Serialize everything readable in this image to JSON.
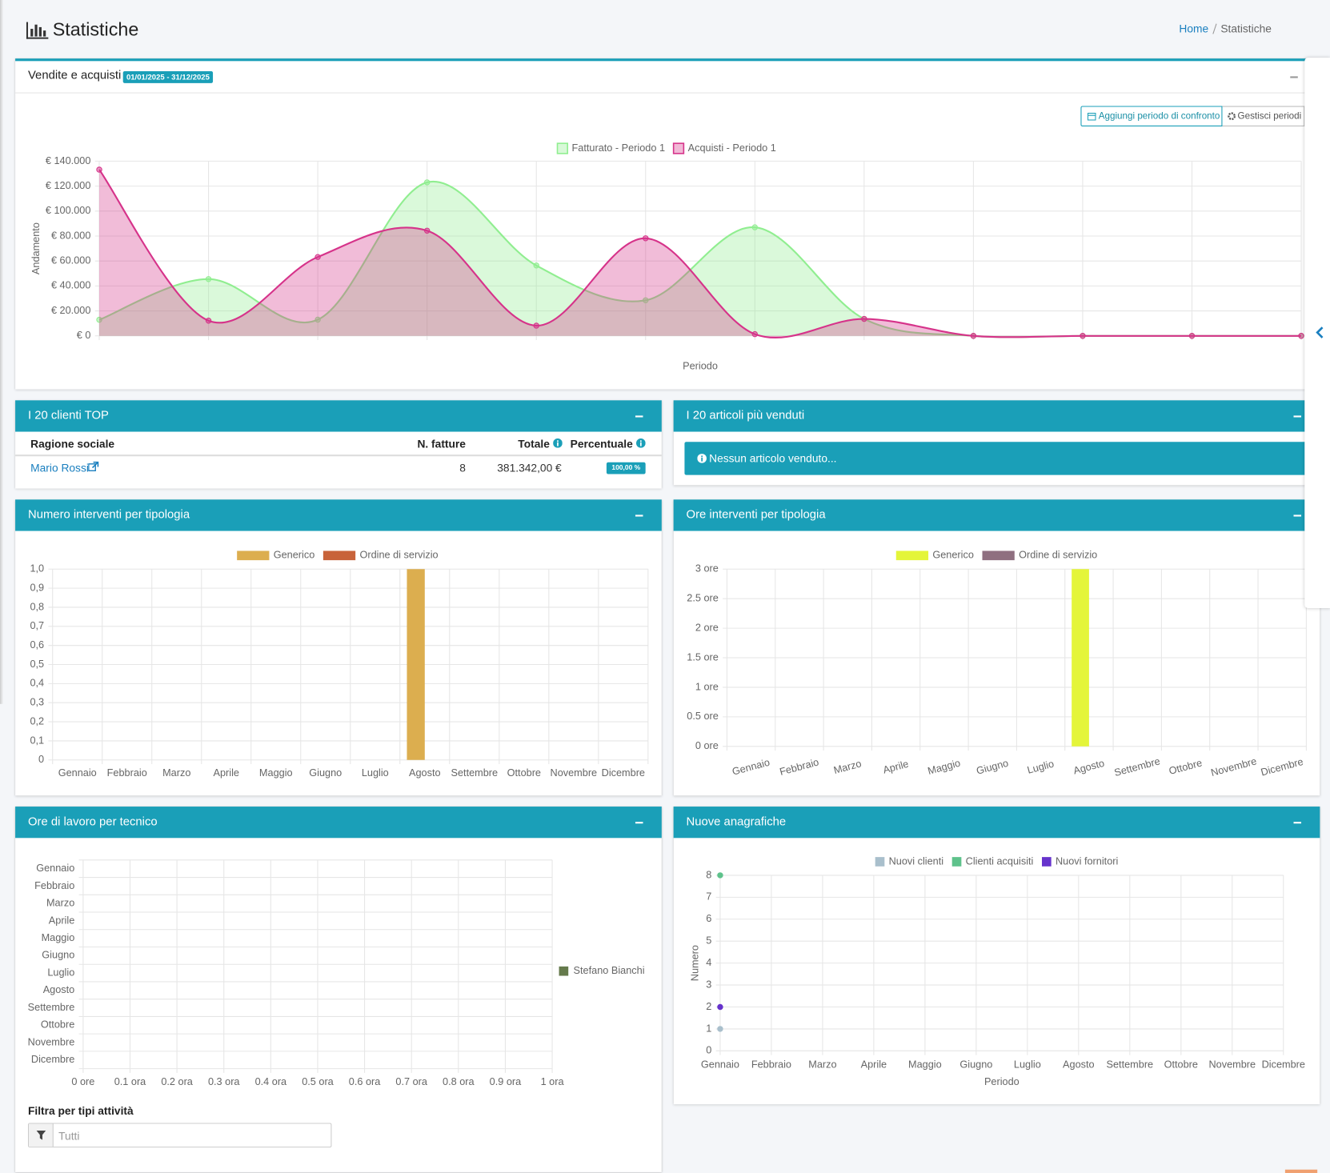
{
  "header": {
    "title": "Statistiche",
    "breadcrumb": [
      "Home",
      "Statistiche"
    ]
  },
  "sales_panel": {
    "period": "01/01/2025 - 31/12/2025",
    "buttons": [
      "Aggiungi periodo di confronto",
      "Gestisci periodi"
    ]
  },
  "top_clients": {
    "title": "I 20 clienti TOP",
    "columns": [
      "Ragione sociale",
      "N. fatture",
      "Totale",
      "Percentuale"
    ],
    "rows": [
      [
        "Mario Rossi",
        8,
        "381.342,00 €",
        "100,00 %"
      ]
    ]
  },
  "top_articles": {
    "title": "I 20 articoli più venduti",
    "message": "Nessun articolo venduto..."
  },
  "filter": {
    "label": "Filtra per tipi attività",
    "placeholder": "Tutti"
  },
  "chart_data": [
    {
      "type": "line",
      "title": "Vendite e acquisti",
      "area": true,
      "smooth": true,
      "x_label": "Periodo",
      "y_label": "Andamento",
      "legend": "top",
      "grid": true,
      "ylim": [
        0,
        140000
      ],
      "yticks": [
        {
          "value": 0,
          "label": "€ 0"
        },
        {
          "value": 20000,
          "label": "€ 20.000"
        },
        {
          "value": 40000,
          "label": "€ 40.000"
        },
        {
          "value": 60000,
          "label": "€ 60.000"
        },
        {
          "value": 80000,
          "label": "€ 80.000"
        },
        {
          "value": 100000,
          "label": "€ 100.000"
        },
        {
          "value": 120000,
          "label": "€ 120.000"
        },
        {
          "value": 140000,
          "label": "€ 140.000"
        }
      ],
      "series": [
        {
          "name": "Fatturato - Periodo 1",
          "color": "#90ee90",
          "values": [
            12900,
            45500,
            13000,
            123000,
            56400,
            28500,
            87000,
            13600,
            0,
            0,
            0,
            0
          ]
        },
        {
          "name": "Acquisti - Periodo 1",
          "color": "#d6338a",
          "values": [
            133200,
            12200,
            63200,
            84300,
            8200,
            78200,
            1400,
            13600,
            0,
            0,
            0,
            0
          ]
        }
      ]
    },
    {
      "type": "bar",
      "title": "Numero interventi per tipologia",
      "legend": "top",
      "grid": true,
      "categories": [
        "Gennaio",
        "Febbraio",
        "Marzo",
        "Aprile",
        "Maggio",
        "Giugno",
        "Luglio",
        "Agosto",
        "Settembre",
        "Ottobre",
        "Novembre",
        "Dicembre"
      ],
      "ylim": [
        0,
        1
      ],
      "yticks": [
        0,
        {
          "value": 0.1,
          "label": "0,1"
        },
        {
          "value": 0.2,
          "label": "0,2"
        },
        {
          "value": 0.3,
          "label": "0,3"
        },
        {
          "value": 0.4,
          "label": "0,4"
        },
        {
          "value": 0.5,
          "label": "0,5"
        },
        {
          "value": 0.6,
          "label": "0,6"
        },
        {
          "value": 0.7,
          "label": "0,7"
        },
        {
          "value": 0.8,
          "label": "0,8"
        },
        {
          "value": 0.9,
          "label": "0,9"
        },
        {
          "value": 1,
          "label": "1,0"
        }
      ],
      "series": [
        {
          "name": "Generico",
          "color": "#dcae4f",
          "values": [
            0,
            0,
            0,
            0,
            0,
            0,
            0,
            1,
            0,
            0,
            0,
            0
          ]
        },
        {
          "name": "Ordine di servizio",
          "color": "#c8633a",
          "values": [
            0,
            0,
            0,
            0,
            0,
            0,
            0,
            0,
            0,
            0,
            0,
            0
          ]
        }
      ]
    },
    {
      "type": "bar",
      "title": "Ore interventi per tipologia",
      "legend": "top",
      "grid": true,
      "categories": [
        "Gennaio",
        "Febbraio",
        "Marzo",
        "Aprile",
        "Maggio",
        "Giugno",
        "Luglio",
        "Agosto",
        "Settembre",
        "Ottobre",
        "Novembre",
        "Dicembre"
      ],
      "ylim": [
        0,
        3
      ],
      "yticks": [
        {
          "value": 0,
          "label": "0 ore"
        },
        {
          "value": 0.5,
          "label": "0.5 ore"
        },
        {
          "value": 1,
          "label": "1 ore"
        },
        {
          "value": 1.5,
          "label": "1.5 ore"
        },
        {
          "value": 2,
          "label": "2 ore"
        },
        {
          "value": 2.5,
          "label": "2.5 ore"
        },
        {
          "value": 3,
          "label": "3 ore"
        }
      ],
      "series": [
        {
          "name": "Generico",
          "color": "#e4f53a",
          "values": [
            0,
            0,
            0,
            0,
            0,
            0,
            0,
            3,
            0,
            0,
            0,
            0
          ]
        },
        {
          "name": "Ordine di servizio",
          "color": "#8f6f80",
          "values": [
            0,
            0,
            0,
            0,
            0,
            0,
            0,
            0,
            0,
            0,
            0,
            0
          ]
        }
      ]
    },
    {
      "type": "hbar",
      "title": "Ore di lavoro per tecnico",
      "legend": "right",
      "grid": true,
      "categories": [
        "Gennaio",
        "Febbraio",
        "Marzo",
        "Aprile",
        "Maggio",
        "Giugno",
        "Luglio",
        "Agosto",
        "Settembre",
        "Ottobre",
        "Novembre",
        "Dicembre"
      ],
      "xlim": [
        0,
        1
      ],
      "xticks": [
        {
          "value": 0,
          "label": "0 ore"
        },
        {
          "value": 0.1,
          "label": "0.1 ora"
        },
        {
          "value": 0.2,
          "label": "0.2 ora"
        },
        {
          "value": 0.3,
          "label": "0.3 ora"
        },
        {
          "value": 0.4,
          "label": "0.4 ora"
        },
        {
          "value": 0.5,
          "label": "0.5 ora"
        },
        {
          "value": 0.6,
          "label": "0.6 ora"
        },
        {
          "value": 0.7,
          "label": "0.7 ora"
        },
        {
          "value": 0.8,
          "label": "0.8 ora"
        },
        {
          "value": 0.9,
          "label": "0.9 ora"
        },
        {
          "value": 1,
          "label": "1 ora"
        }
      ],
      "series": [
        {
          "name": "Stefano Bianchi",
          "color": "#657a4c",
          "values": [
            0,
            0,
            0,
            0,
            0,
            0,
            0,
            0,
            0,
            0,
            0,
            0
          ]
        }
      ]
    },
    {
      "type": "line",
      "title": "Nuove anagrafiche",
      "legend": "top",
      "grid": true,
      "x_label": "Periodo",
      "y_label": "Numero",
      "categories": [
        "Gennaio",
        "Febbraio",
        "Marzo",
        "Aprile",
        "Maggio",
        "Giugno",
        "Luglio",
        "Agosto",
        "Settembre",
        "Ottobre",
        "Novembre",
        "Dicembre"
      ],
      "ylim": [
        0,
        8
      ],
      "yticks": [
        0,
        1,
        2,
        3,
        4,
        5,
        6,
        7,
        8
      ],
      "series": [
        {
          "name": "Nuovi clienti",
          "color": "#a9bfcc",
          "values": [
            1,
            null,
            null,
            null,
            null,
            null,
            null,
            null,
            null,
            null,
            null,
            null
          ]
        },
        {
          "name": "Clienti acquisiti",
          "color": "#5ec28b",
          "values": [
            8,
            null,
            null,
            null,
            null,
            null,
            null,
            null,
            null,
            null,
            null,
            null
          ]
        },
        {
          "name": "Nuovi fornitori",
          "color": "#6633cc",
          "values": [
            2,
            null,
            null,
            null,
            null,
            null,
            null,
            null,
            null,
            null,
            null,
            null
          ]
        }
      ]
    }
  ]
}
